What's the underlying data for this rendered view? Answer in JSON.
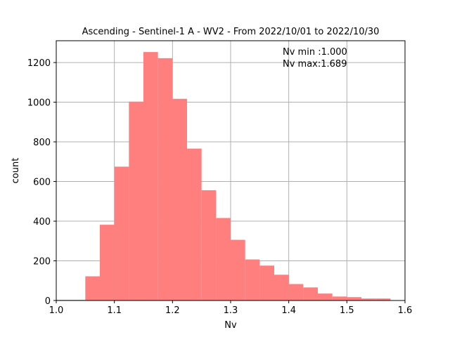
{
  "chart_data": {
    "type": "bar",
    "title": "Ascending - Sentinel-1 A - WV2 - From 2022/10/01 to 2022/10/30",
    "xlabel": "Nv",
    "ylabel": "count",
    "xlim": [
      1.0,
      1.6
    ],
    "ylim": [
      0,
      1310
    ],
    "xticks": [
      1.0,
      1.1,
      1.2,
      1.3,
      1.4,
      1.5,
      1.6
    ],
    "xtick_labels": [
      "1.0",
      "1.1",
      "1.2",
      "1.3",
      "1.4",
      "1.5",
      "1.6"
    ],
    "yticks": [
      0,
      200,
      400,
      600,
      800,
      1000,
      1200
    ],
    "ytick_labels": [
      "0",
      "200",
      "400",
      "600",
      "800",
      "1000",
      "1200"
    ],
    "grid": true,
    "bar_color": "#ff7f7f",
    "bins": [
      {
        "x0": 1.0,
        "x1": 1.025,
        "count": 3
      },
      {
        "x0": 1.025,
        "x1": 1.05,
        "count": 3
      },
      {
        "x0": 1.05,
        "x1": 1.075,
        "count": 122
      },
      {
        "x0": 1.075,
        "x1": 1.1,
        "count": 382
      },
      {
        "x0": 1.1,
        "x1": 1.125,
        "count": 675
      },
      {
        "x0": 1.125,
        "x1": 1.15,
        "count": 1003
      },
      {
        "x0": 1.15,
        "x1": 1.175,
        "count": 1253
      },
      {
        "x0": 1.175,
        "x1": 1.2,
        "count": 1222
      },
      {
        "x0": 1.2,
        "x1": 1.225,
        "count": 1017
      },
      {
        "x0": 1.225,
        "x1": 1.25,
        "count": 766
      },
      {
        "x0": 1.25,
        "x1": 1.275,
        "count": 556
      },
      {
        "x0": 1.275,
        "x1": 1.3,
        "count": 416
      },
      {
        "x0": 1.3,
        "x1": 1.325,
        "count": 306
      },
      {
        "x0": 1.325,
        "x1": 1.35,
        "count": 207
      },
      {
        "x0": 1.35,
        "x1": 1.375,
        "count": 176
      },
      {
        "x0": 1.375,
        "x1": 1.4,
        "count": 130
      },
      {
        "x0": 1.4,
        "x1": 1.425,
        "count": 83
      },
      {
        "x0": 1.425,
        "x1": 1.45,
        "count": 66
      },
      {
        "x0": 1.45,
        "x1": 1.475,
        "count": 35
      },
      {
        "x0": 1.475,
        "x1": 1.5,
        "count": 20
      },
      {
        "x0": 1.5,
        "x1": 1.525,
        "count": 17
      },
      {
        "x0": 1.525,
        "x1": 1.55,
        "count": 10
      },
      {
        "x0": 1.55,
        "x1": 1.575,
        "count": 10
      }
    ],
    "annotations": [
      "Nv min :1.000",
      "Nv max:1.689"
    ]
  }
}
